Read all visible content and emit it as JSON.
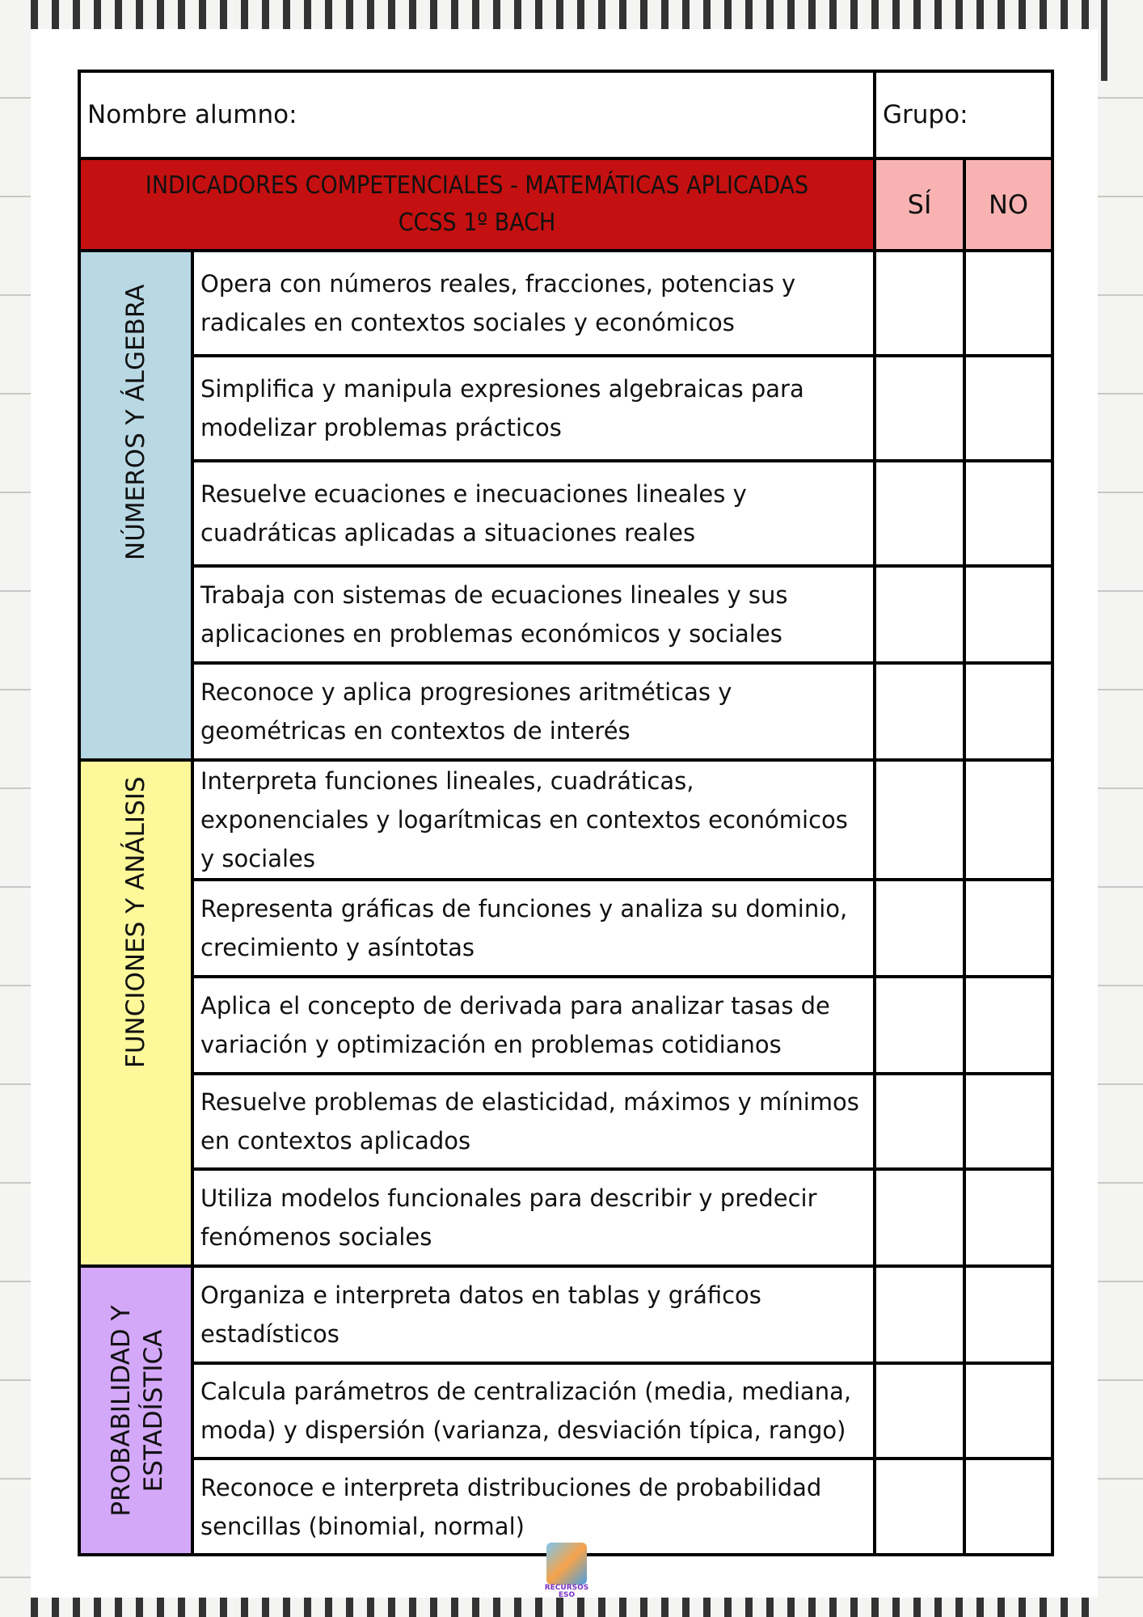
{
  "header": {
    "name_label": "Nombre alumno:",
    "group_label": "Grupo:"
  },
  "title": {
    "line1": "INDICADORES COMPETENCIALES - MATEMÁTICAS APLICADAS",
    "line2": "CCSS 1º BACH",
    "yes": "SÍ",
    "no": "NO"
  },
  "colors": {
    "title_bg": "#c41010",
    "yesno_bg": "#f9b2b2",
    "cat1": "#b8d8e4",
    "cat2": "#fdf89a",
    "cat3": "#d4a8f8"
  },
  "categories": [
    {
      "label": "NÚMEROS Y ÁLGEBRA",
      "items": [
        "Opera con números reales, fracciones, potencias y radicales en contextos sociales y económicos",
        "Simplifica y manipula expresiones algebraicas para modelizar problemas prácticos",
        "Resuelve ecuaciones e inecuaciones lineales y cuadráticas aplicadas a situaciones reales",
        "Trabaja con sistemas de ecuaciones lineales y sus aplicaciones en problemas económicos y sociales",
        "Reconoce y aplica progresiones aritméticas y geométricas en contextos de interés"
      ]
    },
    {
      "label": "FUNCIONES Y ANÁLISIS",
      "items": [
        "Interpreta funciones lineales, cuadráticas, exponenciales y logarítmicas en contextos económicos y sociales",
        "Representa gráficas de funciones y analiza su dominio, crecimiento y asíntotas",
        "Aplica el concepto de derivada para analizar tasas de variación y optimización en problemas cotidianos",
        "Resuelve problemas de elasticidad, máximos y mínimos en contextos aplicados",
        "Utiliza modelos funcionales para describir y predecir fenómenos sociales"
      ]
    },
    {
      "label": "PROBABILIDAD Y ESTADÍSTICA",
      "items": [
        "Organiza e interpreta datos en tablas y gráficos estadísticos",
        "Calcula parámetros de centralización (media, mediana, moda) y dispersión (varianza, desviación típica, rango)",
        "Reconoce e interpreta distribuciones de probabilidad sencillas (binomial, normal)"
      ]
    }
  ],
  "logo": {
    "text": "RECURSOS ESO"
  }
}
